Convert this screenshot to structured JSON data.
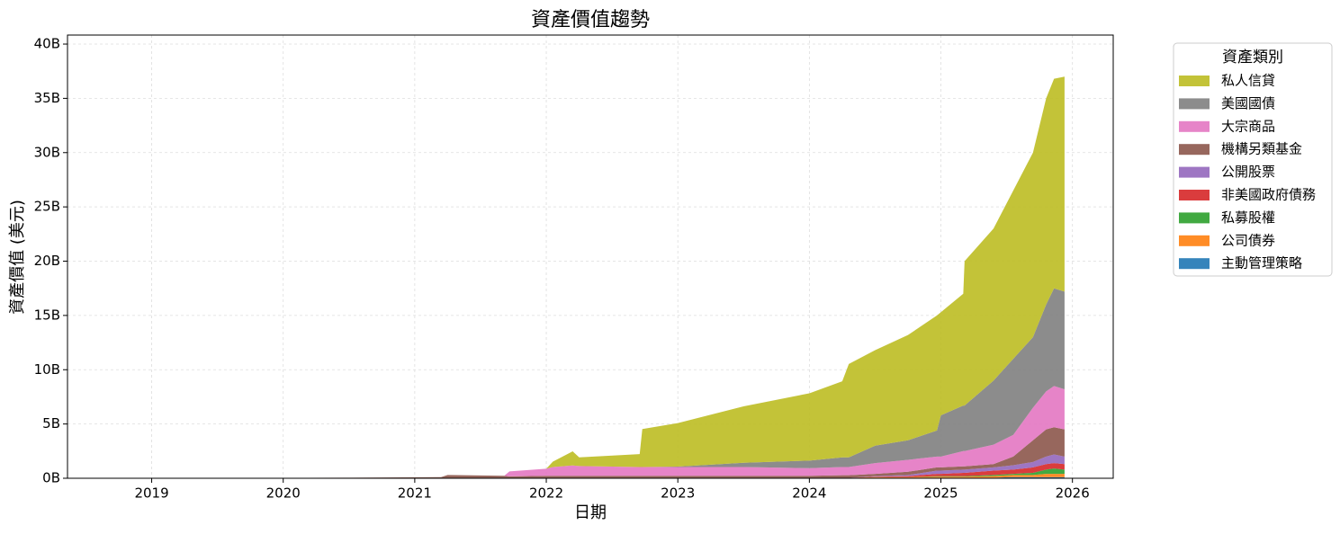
{
  "chart_data": {
    "type": "stacked_area",
    "title": "資產價值趨勢",
    "x_label": "日期",
    "y_label": "資產價值 (美元)",
    "legend_title": "資產類別",
    "legend_position": "outside-upper-right",
    "grid": true,
    "x": [
      2018.55,
      2019.5,
      2020.5,
      2021.2,
      2021.25,
      2021.68,
      2021.72,
      2022.0,
      2022.05,
      2022.2,
      2022.25,
      2022.71,
      2022.73,
      2023.0,
      2023.5,
      2024.0,
      2024.25,
      2024.3,
      2024.5,
      2024.75,
      2024.97,
      2025.0,
      2025.17,
      2025.18,
      2025.4,
      2025.55,
      2025.7,
      2025.8,
      2025.86,
      2025.94
    ],
    "xlim": [
      2018.36,
      2026.31
    ],
    "xticks": [
      2019,
      2020,
      2021,
      2022,
      2023,
      2024,
      2025,
      2026
    ],
    "ylim": [
      0,
      40830000000.0
    ],
    "yticks": [
      {
        "value": 0,
        "label": "0B"
      },
      {
        "value": 5000000000.0,
        "label": "5B"
      },
      {
        "value": 10000000000.0,
        "label": "10B"
      },
      {
        "value": 15000000000.0,
        "label": "15B"
      },
      {
        "value": 20000000000.0,
        "label": "20B"
      },
      {
        "value": 25000000000.0,
        "label": "25B"
      },
      {
        "value": 30000000000.0,
        "label": "30B"
      },
      {
        "value": 35000000000.0,
        "label": "35B"
      },
      {
        "value": 40000000000.0,
        "label": "40B"
      }
    ],
    "series": [
      {
        "name": "主動管理策略",
        "color": "#1f77b4",
        "values": [
          10000000.0,
          20000000.0,
          30000000.0,
          30000000.0,
          30000000.0,
          30000000.0,
          30000000.0,
          30000000.0,
          30000000.0,
          30000000.0,
          30000000.0,
          30000000.0,
          30000000.0,
          30000000.0,
          30000000.0,
          30000000.0,
          30000000.0,
          30000000.0,
          50000000.0,
          50000000.0,
          50000000.0,
          50000000.0,
          50000000.0,
          50000000.0,
          50000000.0,
          100000000.0,
          100000000.0,
          100000000.0,
          100000000.0,
          100000000.0
        ]
      },
      {
        "name": "公司債券",
        "color": "#ff7f0e",
        "values": [
          0,
          0,
          0,
          0,
          0,
          0,
          0,
          0,
          0,
          0,
          0,
          0,
          0,
          0,
          0,
          0,
          0,
          0,
          50000000.0,
          50000000.0,
          100000000.0,
          100000000.0,
          100000000.0,
          100000000.0,
          150000000.0,
          200000000.0,
          200000000.0,
          300000000.0,
          300000000.0,
          300000000.0
        ]
      },
      {
        "name": "私募股權",
        "color": "#2ca02c",
        "values": [
          0,
          0,
          0,
          0,
          0,
          0,
          0,
          0,
          0,
          0,
          0,
          0,
          0,
          0,
          0,
          0,
          0,
          0,
          0,
          0,
          50000000.0,
          50000000.0,
          50000000.0,
          50000000.0,
          100000000.0,
          100000000.0,
          200000000.0,
          400000000.0,
          500000000.0,
          400000000.0
        ]
      },
      {
        "name": "非美國政府債務",
        "color": "#d62728",
        "values": [
          0,
          0,
          0,
          0,
          0,
          0,
          0,
          0,
          0,
          0,
          0,
          0,
          0,
          0,
          0,
          0,
          0,
          0,
          50000000.0,
          100000000.0,
          200000000.0,
          200000000.0,
          300000000.0,
          300000000.0,
          400000000.0,
          400000000.0,
          500000000.0,
          500000000.0,
          500000000.0,
          500000000.0
        ]
      },
      {
        "name": "公開股票",
        "color": "#9467bd",
        "values": [
          0,
          0,
          0,
          0,
          0,
          0,
          0,
          0,
          0,
          0,
          0,
          0,
          0,
          0,
          0,
          0,
          0,
          0,
          50000000.0,
          100000000.0,
          300000000.0,
          300000000.0,
          300000000.0,
          300000000.0,
          300000000.0,
          400000000.0,
          500000000.0,
          700000000.0,
          800000000.0,
          700000000.0
        ]
      },
      {
        "name": "機構另類基金",
        "color": "#8c564b",
        "values": [
          0,
          0,
          20000000.0,
          70000000.0,
          270000000.0,
          200000000.0,
          150000000.0,
          200000000.0,
          200000000.0,
          200000000.0,
          200000000.0,
          200000000.0,
          200000000.0,
          200000000.0,
          200000000.0,
          200000000.0,
          250000000.0,
          250000000.0,
          200000000.0,
          300000000.0,
          300000000.0,
          300000000.0,
          300000000.0,
          300000000.0,
          300000000.0,
          800000000.0,
          2000000000.0,
          2500000000.0,
          2500000000.0,
          2500000000.0
        ]
      },
      {
        "name": "大宗商品",
        "color": "#e377c2",
        "values": [
          0,
          0,
          0,
          0,
          0,
          0,
          450000000.0,
          650000000.0,
          800000000.0,
          950000000.0,
          900000000.0,
          800000000.0,
          800000000.0,
          800000000.0,
          800000000.0,
          700000000.0,
          750000000.0,
          750000000.0,
          1000000000.0,
          1100000000.0,
          1000000000.0,
          1000000000.0,
          1400000000.0,
          1400000000.0,
          1800000000.0,
          2000000000.0,
          3000000000.0,
          3500000000.0,
          3800000000.0,
          3700000000.0
        ]
      },
      {
        "name": "美國國債",
        "color": "#7f7f7f",
        "values": [
          0,
          0,
          0,
          0,
          0,
          0,
          0,
          0,
          0,
          0,
          0,
          0,
          0,
          50000000.0,
          400000000.0,
          700000000.0,
          900000000.0,
          900000000.0,
          1600000000.0,
          1800000000.0,
          2400000000.0,
          3800000000.0,
          4200000000.0,
          4200000000.0,
          5900000000.0,
          7000000000.0,
          6500000000.0,
          8000000000.0,
          9000000000.0,
          9000000000.0
        ]
      },
      {
        "name": "私人信貸",
        "color": "#bcbd22",
        "values": [
          0,
          0,
          0,
          0,
          0,
          0,
          0,
          0,
          500000000.0,
          1300000000.0,
          800000000.0,
          1200000000.0,
          3500000000.0,
          4000000000.0,
          5200000000.0,
          6200000000.0,
          7000000000.0,
          8600000000.0,
          8800000000.0,
          9700000000.0,
          10600000000.0,
          9500000000.0,
          10300000000.0,
          13300000000.0,
          14000000000.0,
          15500000000.0,
          17000000000.0,
          19000000000.0,
          19300000000.0,
          19800000000.0
        ]
      }
    ]
  }
}
